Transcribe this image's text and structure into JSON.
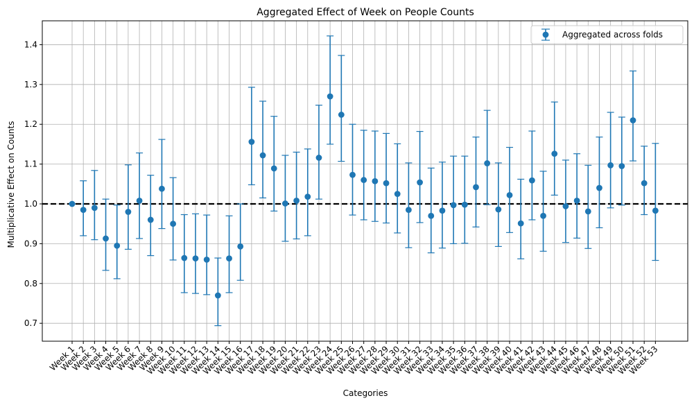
{
  "chart_data": {
    "type": "scatter",
    "title": "Aggregated Effect of Week on People Counts",
    "xlabel": "Categories",
    "ylabel": "Multiplicative Effect on Counts",
    "ylim": [
      0.655,
      1.46
    ],
    "yticks": [
      0.7,
      0.8,
      0.9,
      1.0,
      1.1,
      1.2,
      1.3,
      1.4
    ],
    "grid": true,
    "legend_position": "top-right",
    "reference_line": {
      "y": 1.0,
      "style": "dashed",
      "color": "#000000"
    },
    "colors": {
      "series": "#1f77b4",
      "reference": "#000000",
      "grid": "#b0b0b0"
    },
    "categories": [
      "Week 1",
      "Week 2",
      "Week 3",
      "Week 4",
      "Week 5",
      "Week 6",
      "Week 7",
      "Week 8",
      "Week 9",
      "Week 10",
      "Week 11",
      "Week 12",
      "Week 13",
      "Week 14",
      "Week 15",
      "Week 16",
      "Week 17",
      "Week 18",
      "Week 19",
      "Week 20",
      "Week 21",
      "Week 22",
      "Week 23",
      "Week 24",
      "Week 25",
      "Week 26",
      "Week 27",
      "Week 28",
      "Week 29",
      "Week 30",
      "Week 31",
      "Week 32",
      "Week 33",
      "Week 34",
      "Week 35",
      "Week 36",
      "Week 37",
      "Week 38",
      "Week 39",
      "Week 40",
      "Week 41",
      "Week 42",
      "Week 43",
      "Week 44",
      "Week 45",
      "Week 46",
      "Week 47",
      "Week 48",
      "Week 49",
      "Week 50",
      "Week 51",
      "Week 52",
      "Week 53"
    ],
    "series": [
      {
        "name": "Aggregated across folds",
        "values": [
          1.0,
          0.985,
          0.99,
          0.913,
          0.895,
          0.98,
          1.008,
          0.96,
          1.038,
          0.95,
          0.864,
          0.863,
          0.86,
          0.77,
          0.863,
          0.893,
          1.156,
          1.122,
          1.089,
          1.001,
          1.008,
          1.018,
          1.116,
          1.27,
          1.224,
          1.073,
          1.06,
          1.057,
          1.052,
          1.025,
          0.985,
          1.054,
          0.97,
          0.983,
          0.997,
          0.998,
          1.042,
          1.102,
          0.986,
          1.022,
          0.951,
          1.059,
          0.97,
          1.126,
          0.994,
          1.008,
          0.981,
          1.04,
          1.097,
          1.095,
          1.21,
          1.052,
          0.983
        ],
        "lower": [
          1.0,
          0.92,
          0.91,
          0.833,
          0.812,
          0.886,
          0.913,
          0.87,
          0.938,
          0.859,
          0.777,
          0.775,
          0.772,
          0.694,
          0.777,
          0.808,
          1.048,
          1.015,
          0.982,
          0.906,
          0.912,
          0.92,
          1.012,
          1.15,
          1.107,
          0.972,
          0.96,
          0.956,
          0.952,
          0.927,
          0.89,
          0.953,
          0.877,
          0.889,
          0.9,
          0.901,
          0.942,
          0.998,
          0.893,
          0.928,
          0.862,
          0.96,
          0.881,
          1.022,
          0.903,
          0.914,
          0.888,
          0.94,
          0.99,
          0.997,
          1.108,
          0.973,
          0.858
        ],
        "upper": [
          1.0,
          1.058,
          1.084,
          1.012,
          0.997,
          1.098,
          1.128,
          1.072,
          1.162,
          1.066,
          0.973,
          0.975,
          0.972,
          0.864,
          0.97,
          1.0,
          1.293,
          1.258,
          1.22,
          1.122,
          1.13,
          1.138,
          1.248,
          1.422,
          1.373,
          1.2,
          1.185,
          1.183,
          1.177,
          1.151,
          1.103,
          1.182,
          1.09,
          1.105,
          1.12,
          1.12,
          1.168,
          1.235,
          1.103,
          1.142,
          1.062,
          1.183,
          1.082,
          1.256,
          1.11,
          1.126,
          1.097,
          1.168,
          1.23,
          1.218,
          1.334,
          1.145,
          1.152
        ]
      }
    ]
  }
}
